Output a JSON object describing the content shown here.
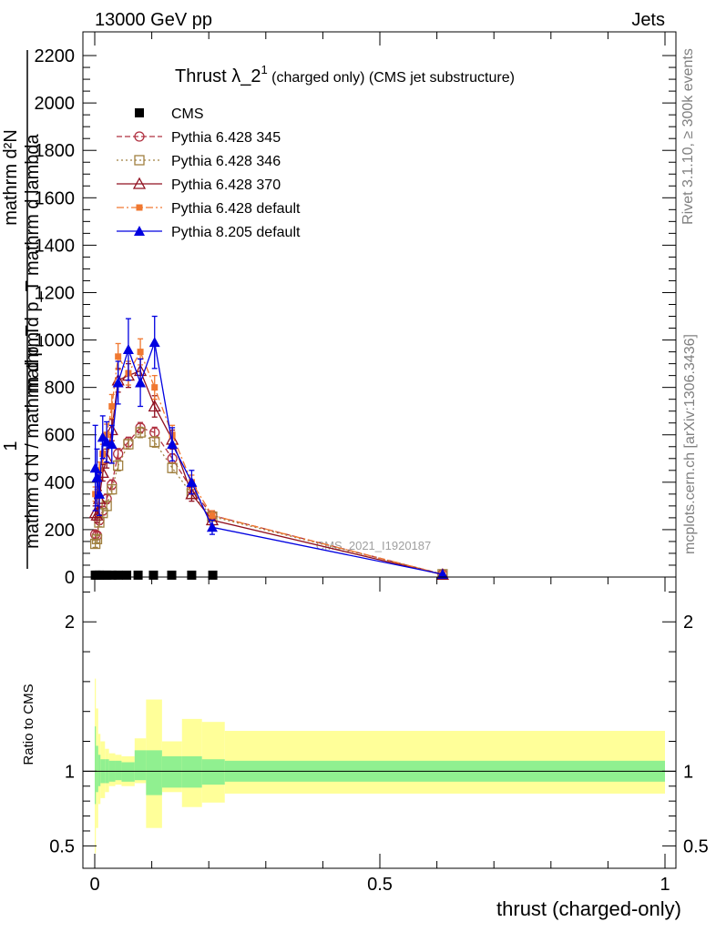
{
  "header": {
    "energy_label": "13000 GeV pp",
    "process_label": "Jets",
    "rivet_label": "Rivet 3.1.10, ≥ 300k events",
    "mcplots_label": "mcplots.cern.ch [arXiv:1306.3436]",
    "analysis_watermark": "CMS_2021_I1920187"
  },
  "colors": {
    "cms": "#000000",
    "p345": "#b03040",
    "p346": "#a08040",
    "p370": "#901020",
    "p6def": "#f07830",
    "p8def": "#0000e0",
    "band_inner": "#90f090",
    "band_outer": "#ffff99"
  },
  "chart_data": [
    {
      "type": "line",
      "panel": "main",
      "title_main": "Thrust λ_2",
      "title_sup": "1",
      "title_rest": " (charged only) (CMS jet substructure)",
      "ylabel_top": "mathrm d²N",
      "ylabel_mid": "mathrm d p_T mathrm d lambda",
      "ylabel_one": "1",
      "ylabel_bottom": "mathrm d N / mathrm d p_T",
      "xlim": [
        0,
        1
      ],
      "ylim": [
        0,
        2300
      ],
      "yticks": [
        0,
        200,
        400,
        600,
        800,
        1000,
        1200,
        1400,
        1600,
        1800,
        2000,
        2200
      ],
      "ytick_labels": [
        "0",
        "200",
        "400",
        "600",
        "800",
        "1000",
        "1200",
        "1400",
        "1600",
        "1800",
        "2000",
        "2200"
      ],
      "legend_position": "top-left",
      "series": [
        {
          "name": "CMS",
          "key": "cms",
          "marker": "square-filled",
          "line": "none",
          "x": [
            0.001,
            0.004,
            0.008,
            0.014,
            0.021,
            0.03,
            0.041,
            0.056,
            0.076,
            0.103,
            0.135,
            0.17,
            0.207
          ],
          "y": [
            8,
            8,
            8,
            8,
            8,
            8,
            8,
            8,
            8,
            8,
            8,
            8,
            8
          ],
          "err": [
            0,
            0,
            0,
            0,
            0,
            0,
            0,
            0,
            0,
            0,
            0,
            0,
            0
          ]
        },
        {
          "name": "Pythia 6.428 345",
          "key": "p345",
          "marker": "circle-open",
          "line": "dashed",
          "x": [
            0.001,
            0.004,
            0.008,
            0.014,
            0.021,
            0.03,
            0.041,
            0.059,
            0.08,
            0.105,
            0.136,
            0.17,
            0.206,
            0.61
          ],
          "y": [
            180,
            175,
            240,
            280,
            330,
            390,
            520,
            570,
            630,
            610,
            500,
            370,
            260,
            12
          ],
          "err": [
            15,
            15,
            18,
            18,
            20,
            20,
            22,
            20,
            22,
            22,
            20,
            18,
            15,
            3
          ]
        },
        {
          "name": "Pythia 6.428 346",
          "key": "p346",
          "marker": "square-open",
          "line": "dotted",
          "x": [
            0.001,
            0.004,
            0.008,
            0.014,
            0.021,
            0.03,
            0.041,
            0.059,
            0.08,
            0.105,
            0.136,
            0.17,
            0.206,
            0.61
          ],
          "y": [
            140,
            160,
            230,
            270,
            300,
            370,
            470,
            560,
            610,
            570,
            460,
            350,
            255,
            12
          ],
          "err": [
            15,
            15,
            18,
            18,
            20,
            20,
            22,
            20,
            22,
            22,
            20,
            18,
            15,
            3
          ]
        },
        {
          "name": "Pythia 6.428 370",
          "key": "p370",
          "marker": "triangle-open",
          "line": "solid",
          "x": [
            0.001,
            0.004,
            0.008,
            0.014,
            0.021,
            0.03,
            0.041,
            0.059,
            0.08,
            0.105,
            0.136,
            0.17,
            0.206,
            0.61
          ],
          "y": [
            270,
            260,
            330,
            440,
            500,
            620,
            830,
            850,
            870,
            720,
            580,
            350,
            240,
            10
          ],
          "err": [
            30,
            30,
            35,
            35,
            40,
            45,
            50,
            50,
            50,
            45,
            40,
            30,
            20,
            3
          ]
        },
        {
          "name": "Pythia 6.428 default",
          "key": "p6def",
          "marker": "square-filled-small",
          "line": "dashdot",
          "x": [
            0.001,
            0.004,
            0.008,
            0.014,
            0.021,
            0.03,
            0.041,
            0.059,
            0.08,
            0.105,
            0.136,
            0.17,
            0.206,
            0.61
          ],
          "y": [
            350,
            340,
            450,
            520,
            600,
            720,
            930,
            860,
            950,
            800,
            600,
            400,
            260,
            12
          ],
          "err": [
            30,
            30,
            35,
            40,
            45,
            50,
            55,
            50,
            55,
            50,
            40,
            30,
            20,
            3
          ]
        },
        {
          "name": "Pythia 8.205 default",
          "key": "p8def",
          "marker": "triangle-filled",
          "line": "solid",
          "x": [
            0.001,
            0.004,
            0.008,
            0.014,
            0.021,
            0.03,
            0.041,
            0.059,
            0.08,
            0.105,
            0.136,
            0.17,
            0.206,
            0.61
          ],
          "y": [
            460,
            420,
            350,
            590,
            570,
            560,
            820,
            960,
            820,
            990,
            560,
            400,
            210,
            12
          ],
          "err": [
            180,
            120,
            90,
            90,
            85,
            80,
            90,
            130,
            100,
            110,
            70,
            50,
            30,
            3
          ]
        }
      ]
    },
    {
      "type": "area",
      "panel": "ratio",
      "ylabel": "Ratio to CMS",
      "xlabel": "thrust (charged-only)",
      "xlim": [
        0,
        1
      ],
      "ylim": [
        0.35,
        2.3
      ],
      "yticks": [
        0.5,
        1,
        2
      ],
      "ytick_labels": [
        "0.5",
        "1",
        "2"
      ],
      "xticks": [
        0,
        0.5,
        1
      ],
      "xtick_labels": [
        "0",
        "0.5",
        "1"
      ],
      "reference_line": 1,
      "bin_edges": [
        0,
        0.002,
        0.006,
        0.01,
        0.018,
        0.025,
        0.036,
        0.047,
        0.07,
        0.09,
        0.118,
        0.153,
        0.188,
        0.228,
        1.0
      ],
      "inner_low": [
        0.78,
        0.86,
        0.9,
        0.92,
        0.92,
        0.93,
        0.94,
        0.93,
        0.94,
        0.84,
        0.89,
        0.89,
        0.91,
        0.93
      ],
      "inner_high": [
        1.3,
        1.17,
        1.11,
        1.08,
        1.08,
        1.07,
        1.07,
        1.06,
        1.14,
        1.14,
        1.1,
        1.1,
        1.08,
        1.07
      ],
      "outer_low": [
        0.45,
        0.62,
        0.78,
        0.82,
        0.86,
        0.9,
        0.91,
        0.9,
        0.92,
        0.62,
        0.86,
        0.76,
        0.79,
        0.85
      ],
      "outer_high": [
        1.62,
        1.42,
        1.25,
        1.2,
        1.15,
        1.12,
        1.11,
        1.1,
        1.22,
        1.48,
        1.2,
        1.35,
        1.33,
        1.27
      ]
    }
  ]
}
